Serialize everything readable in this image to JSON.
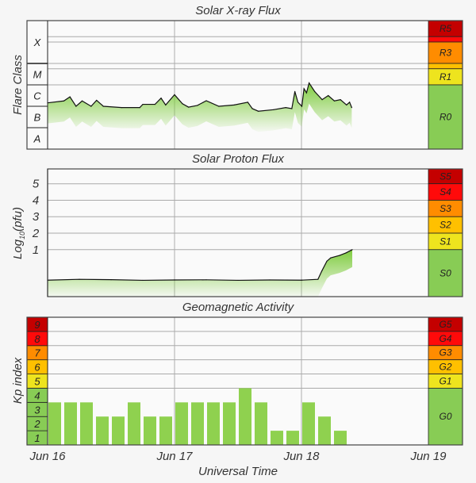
{
  "chart_data": [
    {
      "type": "area",
      "title": "Solar X-ray Flux",
      "ylabel": "Flare Class",
      "y_unit": "log10 flux",
      "ylim": [
        -8,
        -2
      ],
      "class_labels": [
        {
          "label": "X",
          "from": -4,
          "to": -2
        },
        {
          "label": "M",
          "from": -5,
          "to": -4
        },
        {
          "label": "C",
          "from": -6,
          "to": -5
        },
        {
          "label": "B",
          "from": -7,
          "to": -6
        },
        {
          "label": "A",
          "from": -8,
          "to": -7
        }
      ],
      "scale": [
        {
          "label": "R5",
          "from": -2.75,
          "to": -2,
          "color": "#c40000"
        },
        {
          "label": "",
          "from": -3,
          "to": -2.75,
          "color": "#ff0a0a"
        },
        {
          "label": "R3",
          "from": -4,
          "to": -3,
          "color": "#ff8c00"
        },
        {
          "label": "",
          "from": -4.25,
          "to": -4,
          "color": "#ffc000"
        },
        {
          "label": "R1",
          "from": -5,
          "to": -4.25,
          "color": "#eee41e"
        },
        {
          "label": "R0",
          "from": -8,
          "to": -5,
          "color": "#88cc55"
        }
      ],
      "gridlines": [
        -2.75,
        -3,
        -4,
        -4.25,
        -5
      ],
      "x": [
        0,
        0.128,
        0.176,
        0.224,
        0.272,
        0.343,
        0.386,
        0.439,
        0.583,
        0.726,
        0.75,
        0.846,
        0.894,
        0.93,
        1.0,
        1.062,
        1.11,
        1.18,
        1.25,
        1.349,
        1.469,
        1.577,
        1.613,
        1.66,
        1.78,
        1.876,
        1.924,
        1.948,
        1.972,
        2.003,
        2.02,
        2.04,
        2.06,
        2.104,
        2.163,
        2.211,
        2.259,
        2.307,
        2.355,
        2.379,
        2.396
      ],
      "y": [
        -5.84,
        -5.75,
        -5.56,
        -6.0,
        -5.75,
        -6.0,
        -5.72,
        -6.0,
        -6.06,
        -6.06,
        -5.91,
        -5.91,
        -5.62,
        -5.94,
        -5.46,
        -5.88,
        -6.04,
        -5.96,
        -5.74,
        -6.0,
        -5.94,
        -5.81,
        -6.11,
        -6.23,
        -6.16,
        -6.06,
        -6.11,
        -5.31,
        -5.81,
        -6.0,
        -5.18,
        -5.37,
        -4.91,
        -5.31,
        -5.69,
        -5.5,
        -5.75,
        -5.69,
        -5.94,
        -5.81,
        -6.06
      ]
    },
    {
      "type": "area",
      "title": "Solar Proton Flux",
      "ylabel": "Log10(pfu)",
      "ylabel_main": "Log",
      "ylabel_sub": "10",
      "ylabel_tail": "(pfu)",
      "ylim": [
        -1.85,
        5.9
      ],
      "yticks": [
        "1",
        "2",
        "3",
        "4",
        "5"
      ],
      "scale": [
        {
          "label": "S5",
          "from": 5,
          "to": 5.9,
          "color": "#c40000"
        },
        {
          "label": "S4",
          "from": 4,
          "to": 5,
          "color": "#ff0a0a"
        },
        {
          "label": "S3",
          "from": 3,
          "to": 4,
          "color": "#ff8c00"
        },
        {
          "label": "S2",
          "from": 2,
          "to": 3,
          "color": "#ffc000"
        },
        {
          "label": "S1",
          "from": 1,
          "to": 2,
          "color": "#eee41e"
        },
        {
          "label": "S0",
          "from": -1.85,
          "to": 1,
          "color": "#88cc55"
        }
      ],
      "x": [
        0,
        0.25,
        0.5,
        0.75,
        1.0,
        1.25,
        1.5,
        1.75,
        2.0,
        2.13,
        2.16,
        2.2,
        2.23,
        2.3,
        2.35,
        2.4
      ],
      "y": [
        -0.85,
        -0.8,
        -0.82,
        -0.86,
        -0.84,
        -0.83,
        -0.86,
        -0.84,
        -0.85,
        -0.8,
        -0.3,
        0.3,
        0.5,
        0.65,
        0.8,
        1.0
      ]
    },
    {
      "type": "bar",
      "title": "Geomagnetic Activity",
      "ylabel": "Kp index",
      "ylim": [
        0,
        9
      ],
      "bar_hours": 3,
      "values": [
        3,
        3,
        3,
        2,
        2,
        3,
        2,
        2,
        3,
        3,
        3,
        3,
        4,
        3,
        1,
        1,
        3,
        2,
        1
      ],
      "levels": [
        {
          "label": "1",
          "color": "#88cc55"
        },
        {
          "label": "2",
          "color": "#88cc55"
        },
        {
          "label": "3",
          "color": "#88cc55"
        },
        {
          "label": "4",
          "color": "#88cc55"
        },
        {
          "label": "5",
          "color": "#eee41e"
        },
        {
          "label": "6",
          "color": "#ffc000"
        },
        {
          "label": "7",
          "color": "#ff8c00"
        },
        {
          "label": "8",
          "color": "#ff0a0a"
        },
        {
          "label": "9",
          "color": "#c40000"
        }
      ],
      "scale": [
        {
          "label": "G5",
          "from": 8,
          "to": 9,
          "color": "#c40000"
        },
        {
          "label": "G4",
          "from": 7,
          "to": 8,
          "color": "#ff0a0a"
        },
        {
          "label": "G3",
          "from": 6,
          "to": 7,
          "color": "#ff8c00"
        },
        {
          "label": "G2",
          "from": 5,
          "to": 6,
          "color": "#ffc000"
        },
        {
          "label": "G1",
          "from": 4,
          "to": 5,
          "color": "#eee41e"
        },
        {
          "label": "G0",
          "from": 0,
          "to": 4,
          "color": "#88cc55"
        }
      ]
    }
  ],
  "x_axis": {
    "label": "Universal Time",
    "ticks": [
      "Jun 16",
      "Jun 17",
      "Jun 18",
      "Jun 19"
    ],
    "range_days": [
      0,
      3
    ]
  },
  "colors": {
    "fill": "#7fcc3f",
    "bar": "#8fd14f",
    "line": "#111111",
    "grid": "#bbbbbb"
  }
}
